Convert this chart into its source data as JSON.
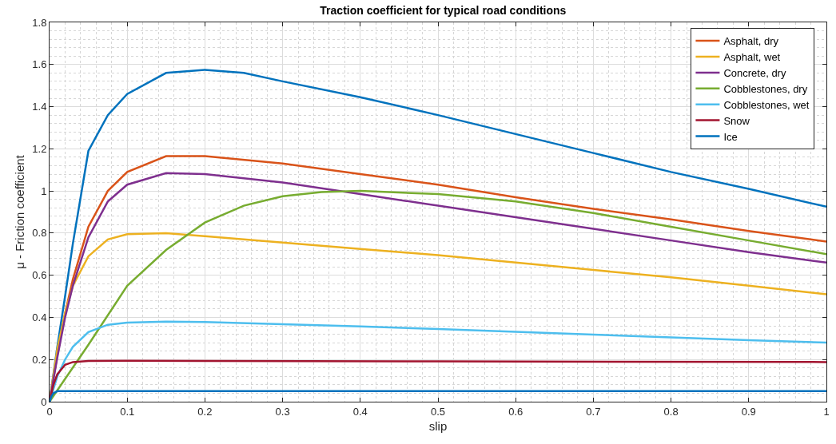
{
  "chart_data": {
    "type": "line",
    "title": "Traction coefficient for typical road conditions",
    "xlabel": "slip",
    "ylabel": "μ - Friction coefficient",
    "xlim": [
      0,
      1
    ],
    "xticks": [
      0,
      0.1,
      0.2,
      0.3,
      0.4,
      0.5,
      0.6,
      0.7,
      0.8,
      0.9,
      1
    ],
    "ylim": [
      0,
      1.8
    ],
    "yticks": [
      0,
      0.2,
      0.4,
      0.6,
      0.8,
      1,
      1.2,
      1.4,
      1.6,
      1.8
    ],
    "grid": true,
    "legend": "top right",
    "marker": "none",
    "line_style": "solid",
    "series": [
      {
        "color": "#0072bd",
        "x": [
          0,
          0.01,
          0.02,
          0.03,
          0.05,
          0.075,
          0.1,
          0.15,
          0.2,
          0.25,
          0.3,
          0.4,
          0.5,
          0.6,
          0.7,
          0.8,
          0.9,
          1
        ],
        "values": [
          0,
          0.26,
          0.5,
          0.75,
          1.19,
          1.36,
          1.46,
          1.56,
          1.575,
          1.56,
          1.52,
          1.445,
          1.36,
          1.27,
          1.18,
          1.09,
          1.01,
          0.925
        ]
      },
      {
        "name": "Asphalt, dry",
        "color": "#d95319",
        "x": [
          0,
          0.01,
          0.02,
          0.03,
          0.05,
          0.075,
          0.1,
          0.15,
          0.2,
          0.3,
          0.4,
          0.5,
          0.6,
          0.7,
          0.8,
          0.9,
          1
        ],
        "values": [
          0,
          0.22,
          0.42,
          0.58,
          0.83,
          1.0,
          1.09,
          1.165,
          1.165,
          1.13,
          1.08,
          1.03,
          0.97,
          0.915,
          0.865,
          0.81,
          0.76
        ]
      },
      {
        "name": "Asphalt, wet",
        "color": "#edb120",
        "x": [
          0,
          0.01,
          0.02,
          0.03,
          0.05,
          0.075,
          0.1,
          0.15,
          0.2,
          0.3,
          0.4,
          0.5,
          0.6,
          0.7,
          0.8,
          0.9,
          1
        ],
        "values": [
          0,
          0.25,
          0.42,
          0.55,
          0.69,
          0.77,
          0.795,
          0.8,
          0.785,
          0.755,
          0.725,
          0.695,
          0.66,
          0.625,
          0.59,
          0.55,
          0.51
        ]
      },
      {
        "name": "Concrete, dry",
        "color": "#7e2f8e",
        "x": [
          0,
          0.01,
          0.02,
          0.03,
          0.05,
          0.075,
          0.1,
          0.15,
          0.2,
          0.3,
          0.4,
          0.5,
          0.6,
          0.7,
          0.8,
          0.9,
          1
        ],
        "values": [
          0,
          0.21,
          0.4,
          0.55,
          0.78,
          0.95,
          1.03,
          1.085,
          1.08,
          1.04,
          0.985,
          0.93,
          0.875,
          0.82,
          0.765,
          0.71,
          0.66
        ]
      },
      {
        "name": "Cobblestones, dry",
        "color": "#77ac30",
        "x": [
          0,
          0.05,
          0.1,
          0.15,
          0.2,
          0.25,
          0.3,
          0.35,
          0.4,
          0.5,
          0.6,
          0.7,
          0.8,
          0.9,
          1
        ],
        "values": [
          0,
          0.27,
          0.55,
          0.72,
          0.85,
          0.93,
          0.975,
          0.995,
          1.0,
          0.985,
          0.95,
          0.895,
          0.83,
          0.765,
          0.7
        ]
      },
      {
        "name": "Cobblestones, wet",
        "color": "#4dbeee",
        "x": [
          0,
          0.01,
          0.02,
          0.03,
          0.05,
          0.075,
          0.1,
          0.15,
          0.2,
          0.3,
          0.4,
          0.5,
          0.6,
          0.7,
          0.8,
          0.9,
          1
        ],
        "values": [
          0,
          0.12,
          0.2,
          0.26,
          0.33,
          0.365,
          0.375,
          0.38,
          0.378,
          0.368,
          0.357,
          0.345,
          0.332,
          0.318,
          0.305,
          0.292,
          0.28
        ]
      },
      {
        "name": "Snow",
        "color": "#a2142f",
        "x": [
          0,
          0.005,
          0.01,
          0.02,
          0.03,
          0.05,
          0.1,
          0.5,
          1
        ],
        "values": [
          0,
          0.08,
          0.13,
          0.175,
          0.188,
          0.193,
          0.194,
          0.191,
          0.188
        ]
      },
      {
        "name": "Ice",
        "color": "#0072bd",
        "x": [
          0,
          0.0025,
          0.005,
          0.01,
          1
        ],
        "values": [
          0,
          0.025,
          0.04,
          0.05,
          0.05
        ]
      }
    ]
  }
}
